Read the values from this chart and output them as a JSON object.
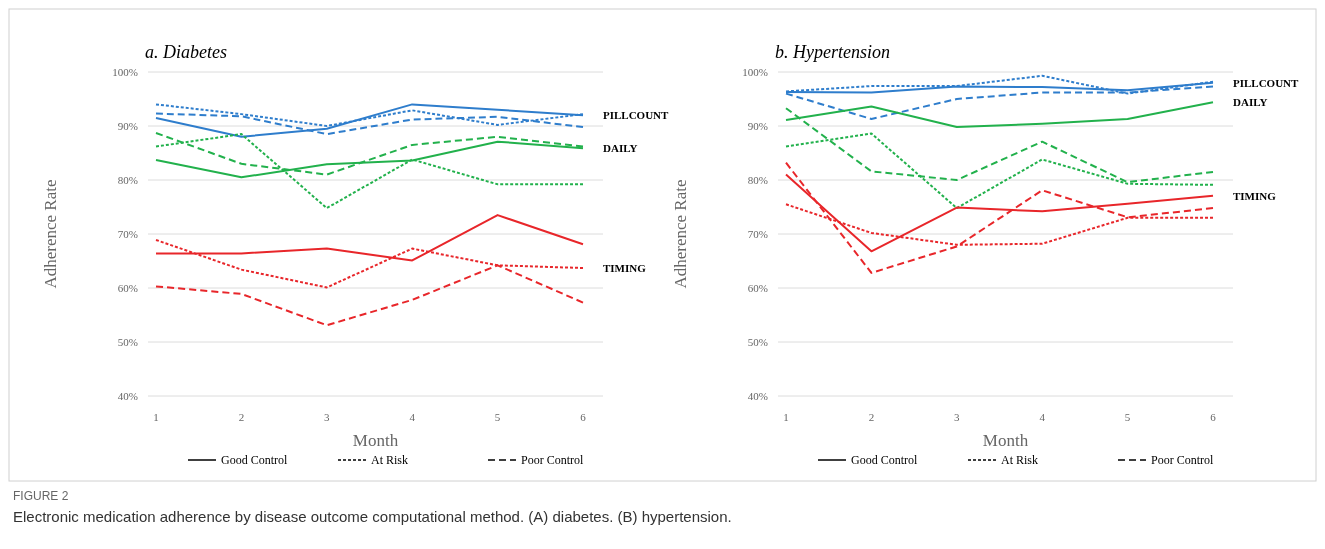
{
  "chart_data": [
    {
      "type": "line",
      "title": "a. Diabetes",
      "xlabel": "Month",
      "ylabel": "Adherence Rate",
      "categories": [
        "1",
        "2",
        "3",
        "4",
        "5",
        "6"
      ],
      "ylim": [
        40,
        100
      ],
      "yticks": [
        {
          "value": 40,
          "label": "40%"
        },
        {
          "value": 50,
          "label": "50%"
        },
        {
          "value": 60,
          "label": "60%"
        },
        {
          "value": 70,
          "label": "70%"
        },
        {
          "value": 80,
          "label": "80%"
        },
        {
          "value": 90,
          "label": "90%"
        },
        {
          "value": 100,
          "label": "100%"
        }
      ],
      "grid": "y",
      "marker": "none",
      "series": [
        {
          "color": "#2e7dcc",
          "line_style": "solid",
          "values": [
            91.5,
            88,
            89.5,
            94,
            93,
            92
          ]
        },
        {
          "color": "#2e7dcc",
          "line_style": "dotted",
          "values": [
            94,
            92.2,
            90,
            92.9,
            90.2,
            92.2
          ]
        },
        {
          "color": "#2e7dcc",
          "line_style": "dashed",
          "values": [
            92.3,
            91.8,
            88.5,
            91.2,
            91.7,
            89.8
          ]
        },
        {
          "color": "#22b14c",
          "line_style": "solid",
          "values": [
            83.7,
            80.5,
            82.9,
            83.6,
            87.1,
            85.9
          ]
        },
        {
          "color": "#22b14c",
          "line_style": "dotted",
          "values": [
            86.2,
            88.5,
            74.8,
            83.8,
            79.2,
            79.2
          ]
        },
        {
          "color": "#22b14c",
          "line_style": "dashed",
          "values": [
            88.7,
            83,
            81,
            86.5,
            88,
            86.2
          ]
        },
        {
          "color": "#e8262a",
          "line_style": "solid",
          "values": [
            66.4,
            66.4,
            67.3,
            65.1,
            73.5,
            68.1
          ]
        },
        {
          "color": "#e8262a",
          "line_style": "dotted",
          "values": [
            68.9,
            63.4,
            60.1,
            67.3,
            64.2,
            63.7
          ]
        },
        {
          "color": "#e8262a",
          "line_style": "dashed",
          "values": [
            60.3,
            58.9,
            53.1,
            57.8,
            64.2,
            57.3
          ]
        }
      ],
      "annotations": [
        {
          "text": "PILLCOUNT",
          "x": "6",
          "y": 92
        },
        {
          "text": "DAILY",
          "x": "6",
          "y": 86
        },
        {
          "text": "TIMING",
          "x": "6",
          "y": 63.7
        },
        "Good Control",
        "At Risk",
        "Poor Control"
      ]
    },
    {
      "type": "line",
      "title": "b. Hypertension",
      "xlabel": "Month",
      "ylabel": "Adherence Rate",
      "categories": [
        "1",
        "2",
        "3",
        "4",
        "5",
        "6"
      ],
      "ylim": [
        40,
        100
      ],
      "yticks": [
        {
          "value": 40,
          "label": "40%"
        },
        {
          "value": 50,
          "label": "50%"
        },
        {
          "value": 60,
          "label": "60%"
        },
        {
          "value": 70,
          "label": "70%"
        },
        {
          "value": 80,
          "label": "80%"
        },
        {
          "value": 90,
          "label": "90%"
        },
        {
          "value": 100,
          "label": "100%"
        }
      ],
      "grid": "y",
      "marker": "none",
      "series": [
        {
          "color": "#2e7dcc",
          "line_style": "solid",
          "values": [
            96.3,
            96.2,
            97.3,
            97.2,
            96.6,
            98
          ]
        },
        {
          "color": "#2e7dcc",
          "line_style": "dotted",
          "values": [
            96.4,
            97.4,
            97.4,
            99.3,
            96,
            98.2
          ]
        },
        {
          "color": "#2e7dcc",
          "line_style": "dashed",
          "values": [
            96,
            91.3,
            95,
            96.2,
            96.2,
            97.3
          ]
        },
        {
          "color": "#22b14c",
          "line_style": "solid",
          "values": [
            91.1,
            93.6,
            89.8,
            90.4,
            91.3,
            94.4
          ]
        },
        {
          "color": "#22b14c",
          "line_style": "dotted",
          "values": [
            86.2,
            88.6,
            74.8,
            83.8,
            79.3,
            79.1
          ]
        },
        {
          "color": "#22b14c",
          "line_style": "dashed",
          "values": [
            93.3,
            81.6,
            80,
            87.1,
            79.6,
            81.5
          ]
        },
        {
          "color": "#e8262a",
          "line_style": "solid",
          "values": [
            81,
            66.8,
            74.9,
            74.2,
            75.6,
            77.1
          ]
        },
        {
          "color": "#e8262a",
          "line_style": "dotted",
          "values": [
            75.5,
            70.2,
            68,
            68.2,
            73,
            73
          ]
        },
        {
          "color": "#e8262a",
          "line_style": "dashed",
          "values": [
            83.2,
            62.8,
            67.7,
            78.1,
            73.1,
            74.8
          ]
        }
      ],
      "annotations": [
        {
          "text": "PILLCOUNT",
          "x": "6",
          "y": 98
        },
        {
          "text": "DAILY",
          "x": "6",
          "y": 94.4
        },
        {
          "text": "TIMING",
          "x": "6",
          "y": 77.1
        },
        "Good Control",
        "At Risk",
        "Poor Control",
        "FIGURE 2",
        "Electronic medication adherence by disease outcome computational method. (A) diabetes. (B) hypertension."
      ]
    }
  ]
}
